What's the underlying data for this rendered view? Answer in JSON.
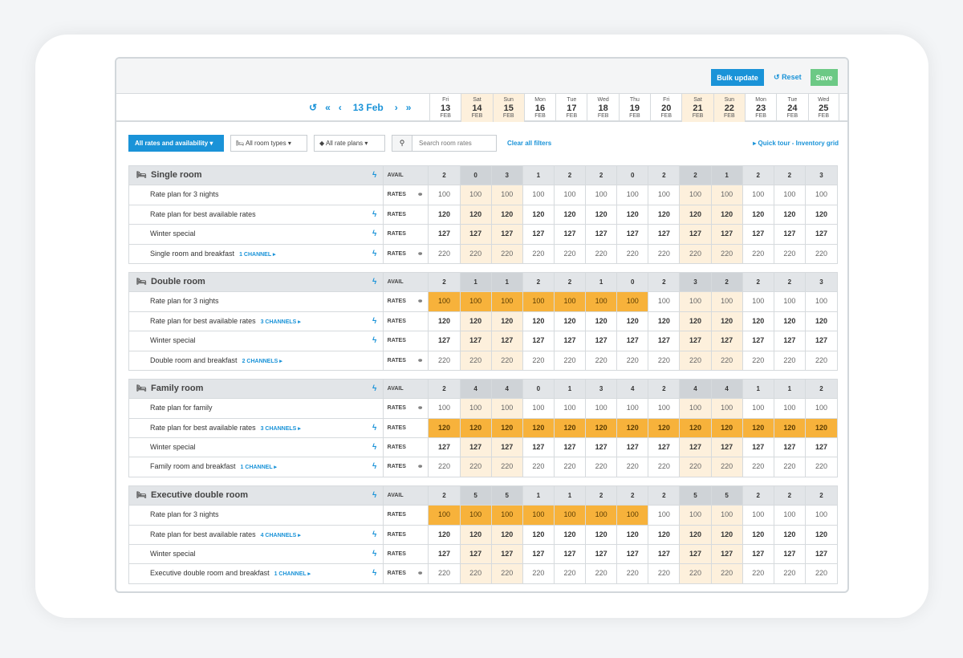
{
  "toolbar": {
    "bulk_update": "Bulk update",
    "reset": "Reset",
    "save": "Save"
  },
  "datenav": {
    "current": "13 Feb"
  },
  "days": [
    {
      "dow": "Fri",
      "num": "13",
      "mon": "FEB",
      "weekend": false
    },
    {
      "dow": "Sat",
      "num": "14",
      "mon": "FEB",
      "weekend": true
    },
    {
      "dow": "Sun",
      "num": "15",
      "mon": "FEB",
      "weekend": true
    },
    {
      "dow": "Mon",
      "num": "16",
      "mon": "FEB",
      "weekend": false
    },
    {
      "dow": "Tue",
      "num": "17",
      "mon": "FEB",
      "weekend": false
    },
    {
      "dow": "Wed",
      "num": "18",
      "mon": "FEB",
      "weekend": false
    },
    {
      "dow": "Thu",
      "num": "19",
      "mon": "FEB",
      "weekend": false
    },
    {
      "dow": "Fri",
      "num": "20",
      "mon": "FEB",
      "weekend": false
    },
    {
      "dow": "Sat",
      "num": "21",
      "mon": "FEB",
      "weekend": true
    },
    {
      "dow": "Sun",
      "num": "22",
      "mon": "FEB",
      "weekend": true
    },
    {
      "dow": "Mon",
      "num": "23",
      "mon": "FEB",
      "weekend": false
    },
    {
      "dow": "Tue",
      "num": "24",
      "mon": "FEB",
      "weekend": false
    },
    {
      "dow": "Wed",
      "num": "25",
      "mon": "FEB",
      "weekend": false
    }
  ],
  "filters": {
    "primary": "All rates and availability",
    "room_types": "All room types",
    "rate_plans": "All rate plans",
    "search_placeholder": "Search room rates",
    "clear": "Clear all filters",
    "tour": "Quick tour - Inventory grid"
  },
  "rooms": [
    {
      "name": "Single room",
      "avail": [
        "2",
        "0",
        "3",
        "1",
        "2",
        "2",
        "0",
        "2",
        "2",
        "1",
        "2",
        "2",
        "3"
      ],
      "plans": [
        {
          "name": "Rate plan for 3 nights",
          "channels": "",
          "icon": "link",
          "values": [
            "100",
            "100",
            "100",
            "100",
            "100",
            "100",
            "100",
            "100",
            "100",
            "100",
            "100",
            "100",
            "100"
          ],
          "highlight": []
        },
        {
          "name": "Rate plan for best available rates",
          "channels": "",
          "icon": "bolt",
          "values": [
            "120",
            "120",
            "120",
            "120",
            "120",
            "120",
            "120",
            "120",
            "120",
            "120",
            "120",
            "120",
            "120"
          ],
          "highlight": []
        },
        {
          "name": "Winter special",
          "channels": "",
          "icon": "bolt",
          "values": [
            "127",
            "127",
            "127",
            "127",
            "127",
            "127",
            "127",
            "127",
            "127",
            "127",
            "127",
            "127",
            "127"
          ],
          "highlight": []
        },
        {
          "name": "Single room and breakfast",
          "channels": "1 CHANNEL ▸",
          "icon": "both",
          "values": [
            "220",
            "220",
            "220",
            "220",
            "220",
            "220",
            "220",
            "220",
            "220",
            "220",
            "220",
            "220",
            "220"
          ],
          "highlight": []
        }
      ]
    },
    {
      "name": "Double room",
      "avail": [
        "2",
        "1",
        "1",
        "2",
        "2",
        "1",
        "0",
        "2",
        "3",
        "2",
        "2",
        "2",
        "3"
      ],
      "plans": [
        {
          "name": "Rate plan for 3 nights",
          "channels": "",
          "icon": "link",
          "values": [
            "100",
            "100",
            "100",
            "100",
            "100",
            "100",
            "100",
            "100",
            "100",
            "100",
            "100",
            "100",
            "100"
          ],
          "highlight": [
            0,
            1,
            2,
            3,
            4,
            5,
            6
          ]
        },
        {
          "name": "Rate plan for best available rates",
          "channels": "3 CHANNELS ▸",
          "icon": "bolt",
          "values": [
            "120",
            "120",
            "120",
            "120",
            "120",
            "120",
            "120",
            "120",
            "120",
            "120",
            "120",
            "120",
            "120"
          ],
          "highlight": []
        },
        {
          "name": "Winter special",
          "channels": "",
          "icon": "bolt",
          "values": [
            "127",
            "127",
            "127",
            "127",
            "127",
            "127",
            "127",
            "127",
            "127",
            "127",
            "127",
            "127",
            "127"
          ],
          "highlight": []
        },
        {
          "name": "Double room and breakfast",
          "channels": "2 CHANNELS ▸",
          "icon": "link",
          "values": [
            "220",
            "220",
            "220",
            "220",
            "220",
            "220",
            "220",
            "220",
            "220",
            "220",
            "220",
            "220",
            "220"
          ],
          "highlight": []
        }
      ]
    },
    {
      "name": "Family room",
      "avail": [
        "2",
        "4",
        "4",
        "0",
        "1",
        "3",
        "4",
        "2",
        "4",
        "4",
        "1",
        "1",
        "2"
      ],
      "plans": [
        {
          "name": "Rate plan for family",
          "channels": "",
          "icon": "link",
          "values": [
            "100",
            "100",
            "100",
            "100",
            "100",
            "100",
            "100",
            "100",
            "100",
            "100",
            "100",
            "100",
            "100"
          ],
          "highlight": []
        },
        {
          "name": "Rate plan for best available rates",
          "channels": "3 CHANNELS ▸",
          "icon": "bolt",
          "values": [
            "120",
            "120",
            "120",
            "120",
            "120",
            "120",
            "120",
            "120",
            "120",
            "120",
            "120",
            "120",
            "120"
          ],
          "highlight": [
            0,
            1,
            2,
            3,
            4,
            5,
            6,
            7,
            8,
            9,
            10,
            11,
            12
          ]
        },
        {
          "name": "Winter special",
          "channels": "",
          "icon": "bolt",
          "values": [
            "127",
            "127",
            "127",
            "127",
            "127",
            "127",
            "127",
            "127",
            "127",
            "127",
            "127",
            "127",
            "127"
          ],
          "highlight": []
        },
        {
          "name": "Family room and breakfast",
          "channels": "1 CHANNEL ▸",
          "icon": "both",
          "values": [
            "220",
            "220",
            "220",
            "220",
            "220",
            "220",
            "220",
            "220",
            "220",
            "220",
            "220",
            "220",
            "220"
          ],
          "highlight": []
        }
      ]
    },
    {
      "name": "Executive double room",
      "avail": [
        "2",
        "5",
        "5",
        "1",
        "1",
        "2",
        "2",
        "2",
        "5",
        "5",
        "2",
        "2",
        "2"
      ],
      "plans": [
        {
          "name": "Rate plan for 3 nights",
          "channels": "",
          "icon": "none",
          "values": [
            "100",
            "100",
            "100",
            "100",
            "100",
            "100",
            "100",
            "100",
            "100",
            "100",
            "100",
            "100",
            "100"
          ],
          "highlight": [
            0,
            1,
            2,
            3,
            4,
            5,
            6
          ]
        },
        {
          "name": "Rate plan for best available rates",
          "channels": "4 CHANNELS ▸",
          "icon": "bolt",
          "values": [
            "120",
            "120",
            "120",
            "120",
            "120",
            "120",
            "120",
            "120",
            "120",
            "120",
            "120",
            "120",
            "120"
          ],
          "highlight": []
        },
        {
          "name": "Winter special",
          "channels": "",
          "icon": "bolt",
          "values": [
            "127",
            "127",
            "127",
            "127",
            "127",
            "127",
            "127",
            "127",
            "127",
            "127",
            "127",
            "127",
            "127"
          ],
          "highlight": []
        },
        {
          "name": "Executive double room and breakfast",
          "channels": "1 CHANNEL ▸",
          "icon": "both",
          "values": [
            "220",
            "220",
            "220",
            "220",
            "220",
            "220",
            "220",
            "220",
            "220",
            "220",
            "220",
            "220",
            "220"
          ],
          "highlight": []
        }
      ]
    }
  ],
  "labels": {
    "avail": "AVAIL",
    "rates": "RATES"
  },
  "colors": {
    "accent": "#1a93d8",
    "save": "#6cc985",
    "highlight": "#f7b23b",
    "weekend": "#fdf0dc"
  }
}
